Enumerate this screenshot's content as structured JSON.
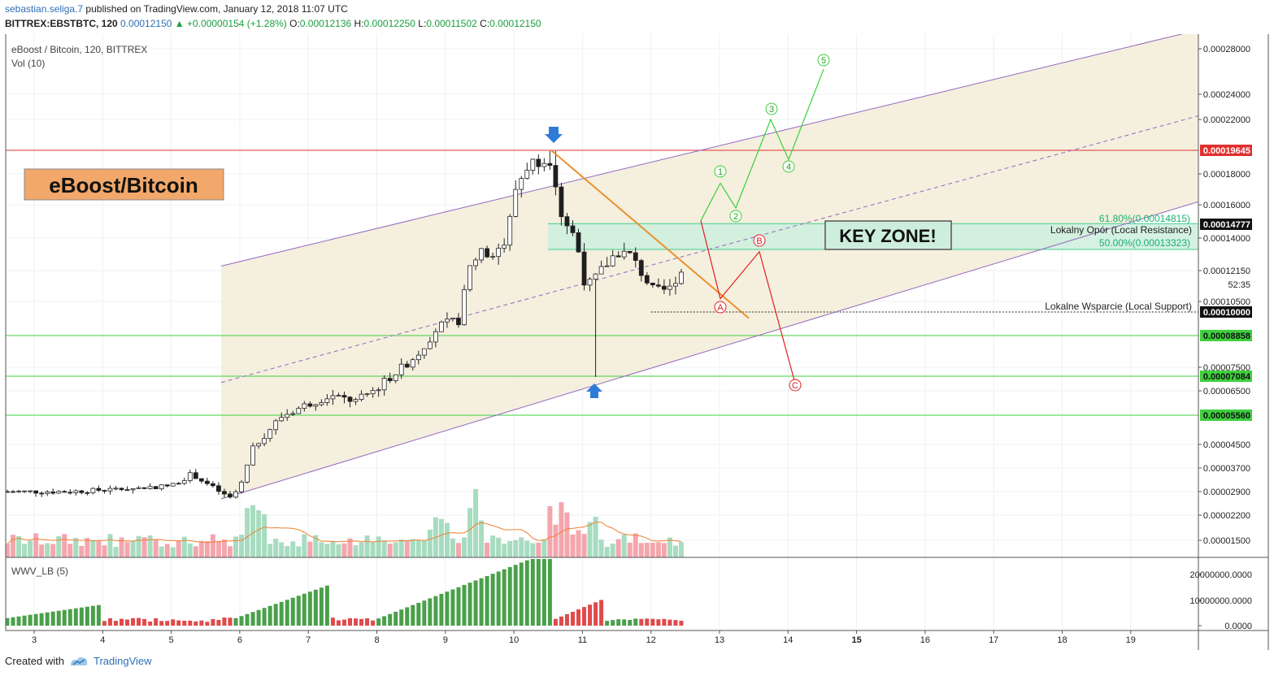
{
  "header": {
    "author": "sebastian.seliga.7",
    "published_text": "published on TradingView.com, January 12, 2018 11:07 UTC",
    "symbol": "BITTREX:EBSTBTC, 120",
    "last": "0.00012150",
    "change": "+0.00000154 (+1.28%)",
    "o_label": "O:",
    "o_value": "0.00012136",
    "h_label": "H:",
    "h_value": "0.00012250",
    "l_label": "L:",
    "l_value": "0.00011502",
    "c_label": "C:",
    "c_value": "0.00012150"
  },
  "footer": {
    "created_with": "Created with",
    "brand": "TradingView"
  },
  "colors": {
    "up": "#ffffff",
    "down": "#1e1e1e",
    "channel": "#9467c0",
    "channel_fill": "#f3ecd8",
    "resistance": "#e03030",
    "support_green": "#3fcf3f",
    "key_zone": "#cdeedd",
    "vol_up": "#a7dcc0",
    "vol_down": "#f4a6ad",
    "wwv_up": "#4aa04a",
    "wwv_down": "#e04a4a",
    "trend_orange": "#e8922e",
    "wave_green": "#38d038",
    "wave_red": "#e02020"
  },
  "chart_data": {
    "type": "candlestick",
    "title": "eBoost / Bitcoin, 120, BITTREX",
    "volume_label": "Vol (10)",
    "indicator_label": "WWV_LB (5)",
    "ylim": [
      1.2e-05,
      0.000305
    ],
    "x_ticks": [
      "3",
      "4",
      "5",
      "6",
      "7",
      "8",
      "9",
      "10",
      "11",
      "12",
      "13",
      "14",
      "15",
      "16",
      "17",
      "18",
      "19"
    ],
    "y_ticks": [
      "0.00028000",
      "0.00024000",
      "0.00022000",
      "0.00018000",
      "0.00016000",
      "0.00014000",
      "0.00012150",
      "0.00010500",
      "0.00007500",
      "0.00006500",
      "0.00004500",
      "0.00003700",
      "0.00002900",
      "0.00002200",
      "0.00001500"
    ],
    "indicator_ticks": [
      "20000000.0000",
      "10000000.0000",
      "0.0000"
    ],
    "countdown": "52:35",
    "price_labels": [
      {
        "value": 0.00019645,
        "text": "0.00019645",
        "kind": "red"
      },
      {
        "value": 0.00014777,
        "text": "0.00014777",
        "kind": "black"
      },
      {
        "value": 0.0001,
        "text": "0.00010000",
        "kind": "black"
      },
      {
        "value": 8.858e-05,
        "text": "0.00008858",
        "kind": "green"
      },
      {
        "value": 7.084e-05,
        "text": "0.00007084",
        "kind": "green"
      },
      {
        "value": 5.56e-05,
        "text": "0.00005560",
        "kind": "green"
      }
    ],
    "horizontal_lines": [
      {
        "value": 0.00019645,
        "color": "red"
      },
      {
        "value": 8.858e-05,
        "color": "green"
      },
      {
        "value": 7.084e-05,
        "color": "green"
      },
      {
        "value": 5.56e-05,
        "color": "green"
      }
    ],
    "key_zone": {
      "top": 0.00014815,
      "bottom": 0.00013323,
      "label": "KEY ZONE!"
    },
    "fib_labels": {
      "top": "61.80%(0.00014815)",
      "bottom": "50.00%(0.00013323)"
    },
    "resistance_text": "Lokalny Opór (Local Resistance)",
    "support_text": "Lokalne Wsparcie (Local Support)",
    "main_label": "eBoost/Bitcoin",
    "wave_labels_green": [
      "1",
      "2",
      "3",
      "4",
      "5"
    ],
    "wave_labels_red": [
      "A",
      "B",
      "C"
    ],
    "channel": {
      "upper_start": 0.000124,
      "upper_end": 0.000296,
      "lower_start": 2.68e-05,
      "lower_end": 0.000162
    }
  }
}
